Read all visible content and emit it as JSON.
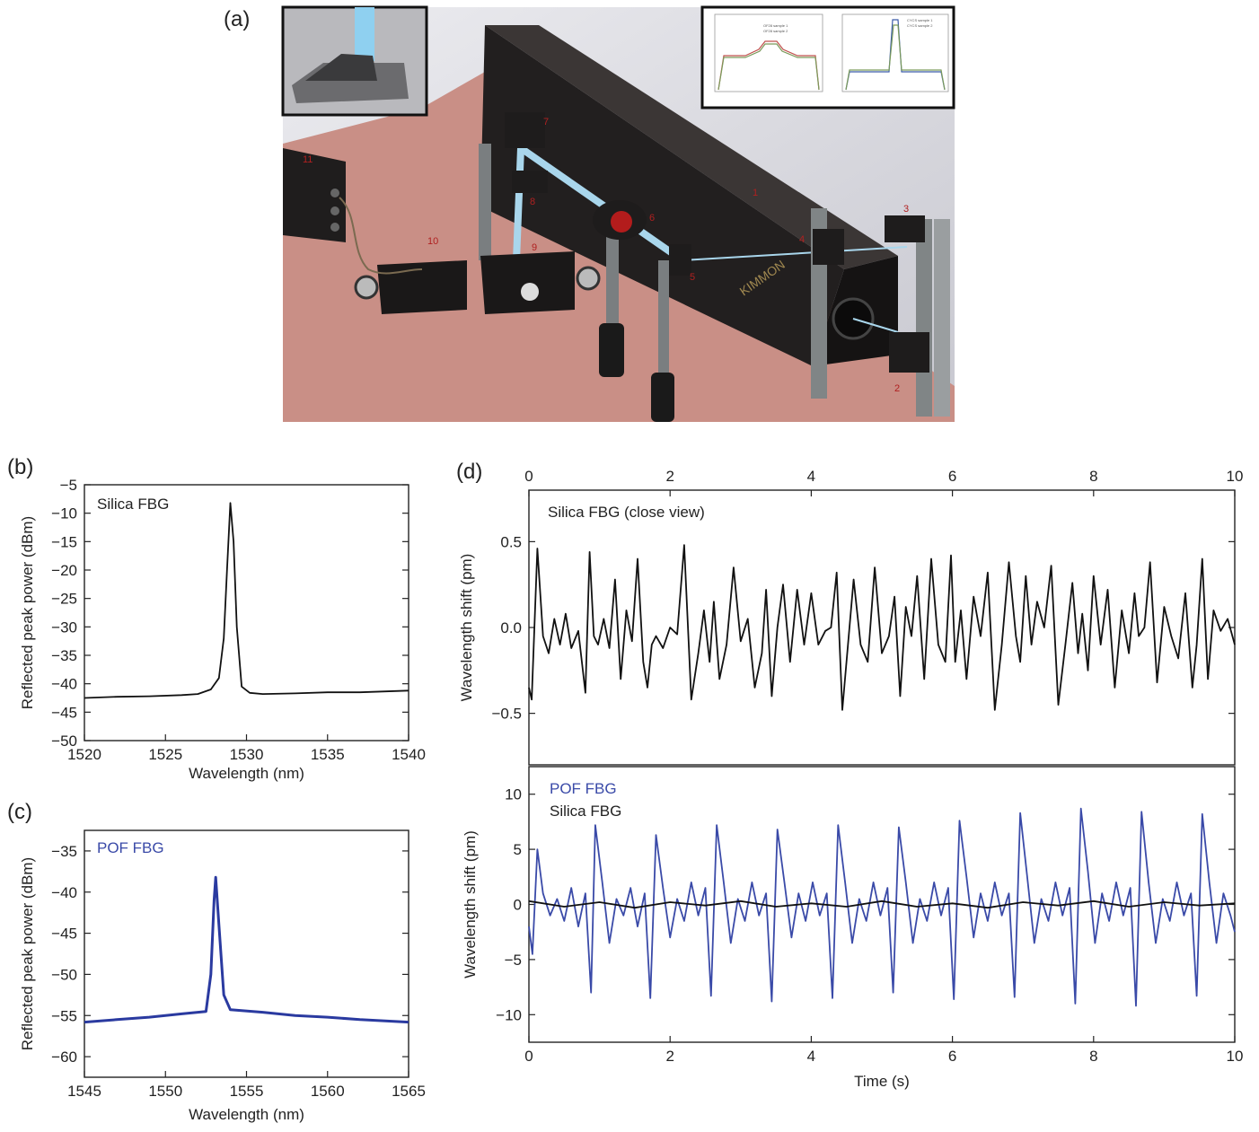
{
  "panels": {
    "a": "(a)",
    "b": "(b)",
    "c": "(c)",
    "d": "(d)"
  },
  "setup": {
    "component_labels": [
      "1",
      "2",
      "3",
      "4",
      "5",
      "6",
      "7",
      "8",
      "9",
      "10",
      "11"
    ],
    "device_brand": "KIMMON",
    "inset_left_legend": [
      "OF28 sample 1",
      "OF28 sample 2"
    ],
    "inset_right_legend": [
      "CYCS sample 1",
      "CYCS sample 2"
    ],
    "colors": {
      "table": "#c98f86",
      "wall": "#d6d6dc",
      "laser": "#2b2727",
      "beam": "#a9d6ec"
    }
  },
  "chart_data": [
    {
      "id": "b",
      "type": "line",
      "annotation": "Silica FBG",
      "xlabel": "Wavelength (nm)",
      "ylabel": "Reflected peak power (dBm)",
      "xlim": [
        1520,
        1540
      ],
      "ylim": [
        -50,
        -5
      ],
      "xticks": [
        1520,
        1525,
        1530,
        1535,
        1540
      ],
      "yticks": [
        -5,
        -10,
        -15,
        -20,
        -25,
        -30,
        -35,
        -40,
        -45,
        -50
      ],
      "series": [
        {
          "color": "#111111",
          "x": [
            1520,
            1522,
            1524,
            1526,
            1527,
            1527.8,
            1528.3,
            1528.6,
            1528.8,
            1529.0,
            1529.2,
            1529.4,
            1529.7,
            1530.2,
            1531,
            1533,
            1535,
            1537,
            1540
          ],
          "y": [
            -42.5,
            -42.3,
            -42.2,
            -42.0,
            -41.8,
            -41.0,
            -39.0,
            -32.0,
            -20.0,
            -8.2,
            -15.0,
            -30.0,
            -40.5,
            -41.6,
            -41.8,
            -41.7,
            -41.5,
            -41.5,
            -41.2
          ]
        }
      ]
    },
    {
      "id": "c",
      "type": "line",
      "annotation": "POF FBG",
      "xlabel": "Wavelength (nm)",
      "ylabel": "Reflected peak power (dBm)",
      "xlim": [
        1545,
        1565
      ],
      "ylim": [
        -62.5,
        -32.5
      ],
      "xticks": [
        1545,
        1550,
        1555,
        1560,
        1565
      ],
      "yticks": [
        -35,
        -40,
        -45,
        -50,
        -55,
        -60
      ],
      "series": [
        {
          "color": "#2a3aa0",
          "x": [
            1545,
            1547,
            1549,
            1551,
            1552.5,
            1552.8,
            1553.0,
            1553.1,
            1553.3,
            1553.6,
            1554,
            1556,
            1558,
            1560,
            1562,
            1565
          ],
          "y": [
            -55.8,
            -55.5,
            -55.2,
            -54.8,
            -54.5,
            -50.0,
            -41.0,
            -38.2,
            -44.0,
            -52.5,
            -54.3,
            -54.6,
            -55.0,
            -55.2,
            -55.5,
            -55.8
          ]
        }
      ]
    },
    {
      "id": "d-top",
      "type": "line",
      "annotation": "Silica FBG (close view)",
      "xlabel": "",
      "ylabel": "Wavelength shift (pm)",
      "xlim": [
        0,
        10
      ],
      "ylim": [
        -0.8,
        0.8
      ],
      "xticks": [
        0,
        2,
        4,
        6,
        8,
        10
      ],
      "yticks": [
        0.5,
        0.0,
        -0.5
      ],
      "ytick_labels": [
        "0.5",
        "0.0",
        "−0.5"
      ],
      "series": [
        {
          "color": "#111111",
          "x": [
            0,
            0.04,
            0.12,
            0.2,
            0.28,
            0.36,
            0.44,
            0.52,
            0.6,
            0.7,
            0.8,
            0.86,
            0.92,
            0.98,
            1.06,
            1.14,
            1.22,
            1.3,
            1.38,
            1.46,
            1.54,
            1.62,
            1.68,
            1.74,
            1.8,
            1.9,
            2.0,
            2.1,
            2.2,
            2.3,
            2.4,
            2.48,
            2.56,
            2.62,
            2.7,
            2.8,
            2.9,
            3.0,
            3.1,
            3.2,
            3.3,
            3.36,
            3.44,
            3.52,
            3.6,
            3.7,
            3.8,
            3.9,
            4.0,
            4.1,
            4.2,
            4.28,
            4.36,
            4.44,
            4.52,
            4.6,
            4.7,
            4.8,
            4.9,
            5.0,
            5.1,
            5.18,
            5.26,
            5.34,
            5.42,
            5.5,
            5.6,
            5.7,
            5.8,
            5.9,
            5.98,
            6.04,
            6.12,
            6.2,
            6.3,
            6.4,
            6.5,
            6.6,
            6.7,
            6.8,
            6.9,
            6.96,
            7.04,
            7.12,
            7.2,
            7.3,
            7.4,
            7.5,
            7.6,
            7.7,
            7.78,
            7.84,
            7.92,
            8.0,
            8.1,
            8.2,
            8.3,
            8.4,
            8.5,
            8.58,
            8.64,
            8.72,
            8.8,
            8.9,
            9.0,
            9.1,
            9.2,
            9.3,
            9.4,
            9.46,
            9.54,
            9.62,
            9.7,
            9.8,
            9.9,
            10.0
          ],
          "y": [
            -0.35,
            -0.42,
            0.46,
            -0.05,
            -0.15,
            0.05,
            -0.1,
            0.08,
            -0.12,
            -0.02,
            -0.38,
            0.44,
            -0.05,
            -0.1,
            0.05,
            -0.12,
            0.28,
            -0.3,
            0.1,
            -0.08,
            0.4,
            -0.2,
            -0.35,
            -0.1,
            -0.05,
            -0.12,
            0.0,
            -0.04,
            0.48,
            -0.42,
            -0.15,
            0.1,
            -0.2,
            0.15,
            -0.3,
            -0.1,
            0.35,
            -0.08,
            0.05,
            -0.35,
            -0.15,
            0.22,
            -0.4,
            0.0,
            0.25,
            -0.2,
            0.22,
            -0.1,
            0.2,
            -0.1,
            -0.02,
            0.0,
            0.32,
            -0.48,
            -0.1,
            0.28,
            -0.1,
            -0.2,
            0.35,
            -0.15,
            -0.05,
            0.18,
            -0.4,
            0.12,
            -0.05,
            0.3,
            -0.3,
            0.4,
            -0.1,
            -0.2,
            0.42,
            -0.2,
            0.1,
            -0.3,
            0.18,
            -0.05,
            0.32,
            -0.48,
            -0.1,
            0.38,
            -0.05,
            -0.2,
            0.3,
            -0.1,
            0.15,
            0.0,
            0.36,
            -0.45,
            -0.1,
            0.26,
            -0.15,
            0.08,
            -0.25,
            0.3,
            -0.1,
            0.22,
            -0.35,
            0.1,
            -0.15,
            0.2,
            -0.05,
            0.0,
            0.38,
            -0.32,
            0.12,
            -0.05,
            -0.18,
            0.2,
            -0.35,
            -0.1,
            0.4,
            -0.3,
            0.1,
            -0.02,
            0.05,
            -0.1
          ]
        }
      ]
    },
    {
      "id": "d-bottom",
      "type": "line",
      "legend": [
        "POF FBG",
        "Silica FBG"
      ],
      "xlabel": "Time (s)",
      "ylabel": "Wavelength shift (pm)",
      "xlim": [
        0,
        10
      ],
      "ylim": [
        -12.5,
        12.5
      ],
      "xticks": [
        0,
        2,
        4,
        6,
        8,
        10
      ],
      "yticks": [
        10,
        5,
        0,
        -5,
        -10
      ],
      "ytick_labels": [
        "10",
        "5",
        "0",
        "−5",
        "−10"
      ],
      "series": [
        {
          "name": "POF FBG",
          "color": "#3a4aa8",
          "x": [
            0,
            0.05,
            0.12,
            0.2,
            0.3,
            0.4,
            0.5,
            0.6,
            0.7,
            0.8,
            0.88,
            0.94,
            1.04,
            1.14,
            1.24,
            1.34,
            1.44,
            1.54,
            1.64,
            1.72,
            1.8,
            1.9,
            2.0,
            2.1,
            2.2,
            2.3,
            2.4,
            2.5,
            2.58,
            2.66,
            2.76,
            2.86,
            2.96,
            3.06,
            3.16,
            3.26,
            3.36,
            3.44,
            3.52,
            3.62,
            3.72,
            3.82,
            3.92,
            4.02,
            4.12,
            4.22,
            4.3,
            4.38,
            4.48,
            4.58,
            4.68,
            4.78,
            4.88,
            4.98,
            5.08,
            5.16,
            5.24,
            5.34,
            5.44,
            5.54,
            5.64,
            5.74,
            5.84,
            5.94,
            6.02,
            6.1,
            6.2,
            6.3,
            6.4,
            6.5,
            6.6,
            6.7,
            6.8,
            6.88,
            6.96,
            7.06,
            7.16,
            7.26,
            7.36,
            7.46,
            7.56,
            7.66,
            7.74,
            7.82,
            7.92,
            8.02,
            8.12,
            8.22,
            8.32,
            8.42,
            8.52,
            8.6,
            8.68,
            8.78,
            8.88,
            8.98,
            9.08,
            9.18,
            9.28,
            9.38,
            9.46,
            9.54,
            9.64,
            9.74,
            9.84,
            9.94,
            10.0
          ],
          "y": [
            -2.0,
            -4.5,
            5.0,
            1.0,
            -1.0,
            0.5,
            -1.5,
            1.5,
            -2.0,
            1.0,
            -8.0,
            7.2,
            2.0,
            -3.5,
            0.5,
            -1.0,
            1.5,
            -2.0,
            1.0,
            -8.5,
            6.3,
            1.5,
            -3.0,
            0.5,
            -1.5,
            2.0,
            -1.0,
            1.5,
            -8.3,
            7.2,
            2.0,
            -3.5,
            0.5,
            -1.5,
            2.0,
            -1.0,
            1.0,
            -8.8,
            6.8,
            2.0,
            -3.0,
            1.0,
            -1.5,
            2.0,
            -1.0,
            1.0,
            -8.5,
            7.2,
            2.0,
            -3.5,
            0.5,
            -1.5,
            2.0,
            -1.0,
            1.5,
            -8.0,
            7.0,
            2.0,
            -3.5,
            0.5,
            -1.5,
            2.0,
            -1.0,
            1.5,
            -8.6,
            7.6,
            2.5,
            -3.0,
            1.0,
            -1.5,
            2.0,
            -1.0,
            1.0,
            -8.4,
            8.3,
            2.5,
            -3.5,
            0.5,
            -1.5,
            2.0,
            -1.0,
            1.5,
            -9.0,
            8.7,
            3.0,
            -3.5,
            1.0,
            -1.5,
            2.0,
            -1.0,
            1.5,
            -9.2,
            8.4,
            2.0,
            -3.5,
            0.5,
            -1.5,
            2.0,
            -1.0,
            1.0,
            -8.3,
            8.2,
            2.0,
            -3.5,
            1.0,
            -1.0,
            -2.5
          ]
        },
        {
          "name": "Silica FBG",
          "color": "#111111",
          "x": [
            0,
            0.5,
            1,
            1.5,
            2,
            2.5,
            3,
            3.5,
            4,
            4.5,
            5,
            5.5,
            6,
            6.5,
            7,
            7.5,
            8,
            8.5,
            9,
            9.5,
            10
          ],
          "y": [
            0.3,
            -0.2,
            0.2,
            -0.3,
            0.2,
            -0.1,
            0.3,
            -0.2,
            0.1,
            -0.2,
            0.3,
            -0.2,
            0.1,
            -0.3,
            0.2,
            -0.1,
            0.3,
            -0.2,
            0.2,
            -0.1,
            0.1
          ]
        }
      ]
    }
  ]
}
